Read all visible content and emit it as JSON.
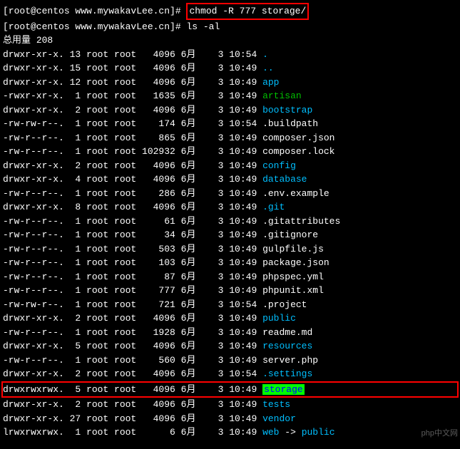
{
  "prompt": "[root@centos www.mywakavLee.cn]# ",
  "cmd1": "chmod -R 777 storage/",
  "cmd2": "ls -al",
  "total_label": "总用量 ",
  "total_value": "208",
  "watermark": "php中文网",
  "colors": {
    "background": "#000000",
    "text": "#ffffff",
    "directory": "#00bfff",
    "executable": "#00c000",
    "symlink": "#00ffff",
    "highlight_border": "#ff0000",
    "storage_bg": "#00ff00",
    "storage_fg": "#0000ff"
  },
  "entries": [
    {
      "perms": "drwxr-xr-x.",
      "links": "13",
      "owner": "root",
      "group": "root",
      "size": "4096",
      "month": "6月",
      "day": "3",
      "time": "10:54",
      "name": ".",
      "name_class": "blue"
    },
    {
      "perms": "drwxr-xr-x.",
      "links": "15",
      "owner": "root",
      "group": "root",
      "size": "4096",
      "month": "6月",
      "day": "3",
      "time": "10:49",
      "name": "..",
      "name_class": "blue"
    },
    {
      "perms": "drwxr-xr-x.",
      "links": "12",
      "owner": "root",
      "group": "root",
      "size": "4096",
      "month": "6月",
      "day": "3",
      "time": "10:49",
      "name": "app",
      "name_class": "blue"
    },
    {
      "perms": "-rwxr-xr-x.",
      "links": "1",
      "owner": "root",
      "group": "root",
      "size": "1635",
      "month": "6月",
      "day": "3",
      "time": "10:49",
      "name": "artisan",
      "name_class": "green"
    },
    {
      "perms": "drwxr-xr-x.",
      "links": "2",
      "owner": "root",
      "group": "root",
      "size": "4096",
      "month": "6月",
      "day": "3",
      "time": "10:49",
      "name": "bootstrap",
      "name_class": "blue"
    },
    {
      "perms": "-rw-rw-r--.",
      "links": "1",
      "owner": "root",
      "group": "root",
      "size": "174",
      "month": "6月",
      "day": "3",
      "time": "10:54",
      "name": ".buildpath",
      "name_class": "white"
    },
    {
      "perms": "-rw-r--r--.",
      "links": "1",
      "owner": "root",
      "group": "root",
      "size": "865",
      "month": "6月",
      "day": "3",
      "time": "10:49",
      "name": "composer.json",
      "name_class": "white"
    },
    {
      "perms": "-rw-r--r--.",
      "links": "1",
      "owner": "root",
      "group": "root",
      "size": "102932",
      "month": "6月",
      "day": "3",
      "time": "10:49",
      "name": "composer.lock",
      "name_class": "white"
    },
    {
      "perms": "drwxr-xr-x.",
      "links": "2",
      "owner": "root",
      "group": "root",
      "size": "4096",
      "month": "6月",
      "day": "3",
      "time": "10:49",
      "name": "config",
      "name_class": "blue"
    },
    {
      "perms": "drwxr-xr-x.",
      "links": "4",
      "owner": "root",
      "group": "root",
      "size": "4096",
      "month": "6月",
      "day": "3",
      "time": "10:49",
      "name": "database",
      "name_class": "blue"
    },
    {
      "perms": "-rw-r--r--.",
      "links": "1",
      "owner": "root",
      "group": "root",
      "size": "286",
      "month": "6月",
      "day": "3",
      "time": "10:49",
      "name": ".env.example",
      "name_class": "white"
    },
    {
      "perms": "drwxr-xr-x.",
      "links": "8",
      "owner": "root",
      "group": "root",
      "size": "4096",
      "month": "6月",
      "day": "3",
      "time": "10:49",
      "name": ".git",
      "name_class": "blue"
    },
    {
      "perms": "-rw-r--r--.",
      "links": "1",
      "owner": "root",
      "group": "root",
      "size": "61",
      "month": "6月",
      "day": "3",
      "time": "10:49",
      "name": ".gitattributes",
      "name_class": "white"
    },
    {
      "perms": "-rw-r--r--.",
      "links": "1",
      "owner": "root",
      "group": "root",
      "size": "34",
      "month": "6月",
      "day": "3",
      "time": "10:49",
      "name": ".gitignore",
      "name_class": "white"
    },
    {
      "perms": "-rw-r--r--.",
      "links": "1",
      "owner": "root",
      "group": "root",
      "size": "503",
      "month": "6月",
      "day": "3",
      "time": "10:49",
      "name": "gulpfile.js",
      "name_class": "white"
    },
    {
      "perms": "-rw-r--r--.",
      "links": "1",
      "owner": "root",
      "group": "root",
      "size": "103",
      "month": "6月",
      "day": "3",
      "time": "10:49",
      "name": "package.json",
      "name_class": "white"
    },
    {
      "perms": "-rw-r--r--.",
      "links": "1",
      "owner": "root",
      "group": "root",
      "size": "87",
      "month": "6月",
      "day": "3",
      "time": "10:49",
      "name": "phpspec.yml",
      "name_class": "white"
    },
    {
      "perms": "-rw-r--r--.",
      "links": "1",
      "owner": "root",
      "group": "root",
      "size": "777",
      "month": "6月",
      "day": "3",
      "time": "10:49",
      "name": "phpunit.xml",
      "name_class": "white"
    },
    {
      "perms": "-rw-rw-r--.",
      "links": "1",
      "owner": "root",
      "group": "root",
      "size": "721",
      "month": "6月",
      "day": "3",
      "time": "10:54",
      "name": ".project",
      "name_class": "white"
    },
    {
      "perms": "drwxr-xr-x.",
      "links": "2",
      "owner": "root",
      "group": "root",
      "size": "4096",
      "month": "6月",
      "day": "3",
      "time": "10:49",
      "name": "public",
      "name_class": "blue"
    },
    {
      "perms": "-rw-r--r--.",
      "links": "1",
      "owner": "root",
      "group": "root",
      "size": "1928",
      "month": "6月",
      "day": "3",
      "time": "10:49",
      "name": "readme.md",
      "name_class": "white"
    },
    {
      "perms": "drwxr-xr-x.",
      "links": "5",
      "owner": "root",
      "group": "root",
      "size": "4096",
      "month": "6月",
      "day": "3",
      "time": "10:49",
      "name": "resources",
      "name_class": "blue"
    },
    {
      "perms": "-rw-r--r--.",
      "links": "1",
      "owner": "root",
      "group": "root",
      "size": "560",
      "month": "6月",
      "day": "3",
      "time": "10:49",
      "name": "server.php",
      "name_class": "white"
    },
    {
      "perms": "drwxr-xr-x.",
      "links": "2",
      "owner": "root",
      "group": "root",
      "size": "4096",
      "month": "6月",
      "day": "3",
      "time": "10:54",
      "name": ".settings",
      "name_class": "blue"
    },
    {
      "perms": "drwxrwxrwx.",
      "links": "5",
      "owner": "root",
      "group": "root",
      "size": "4096",
      "month": "6月",
      "day": "3",
      "time": "10:49",
      "name": "storage",
      "name_class": "storage",
      "highlight": true
    },
    {
      "perms": "drwxr-xr-x.",
      "links": "2",
      "owner": "root",
      "group": "root",
      "size": "4096",
      "month": "6月",
      "day": "3",
      "time": "10:49",
      "name": "tests",
      "name_class": "blue"
    },
    {
      "perms": "drwxr-xr-x.",
      "links": "27",
      "owner": "root",
      "group": "root",
      "size": "4096",
      "month": "6月",
      "day": "3",
      "time": "10:49",
      "name": "vendor",
      "name_class": "blue"
    },
    {
      "perms": "lrwxrwxrwx.",
      "links": "1",
      "owner": "root",
      "group": "root",
      "size": "6",
      "month": "6月",
      "day": "3",
      "time": "10:49",
      "name": "web",
      "name_class": "symlink",
      "arrow": " -> ",
      "target": "public",
      "target_class": "blue"
    }
  ]
}
